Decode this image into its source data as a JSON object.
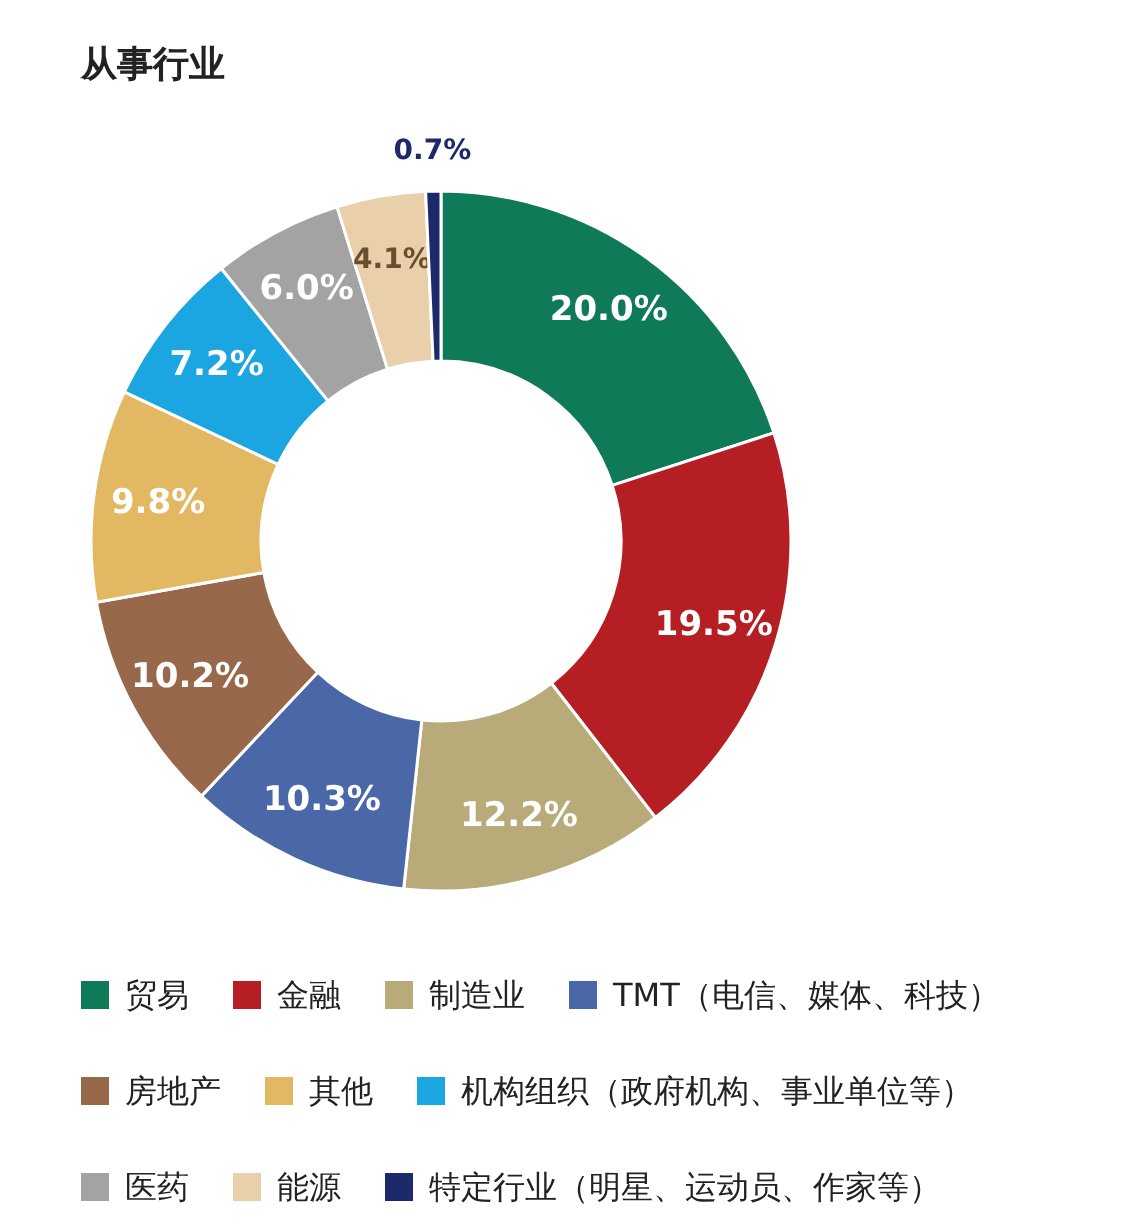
{
  "chart_data": {
    "type": "donut",
    "title": "从事行业",
    "categories": [
      "贸易",
      "金融",
      "制造业",
      "TMT（电信、媒体、科技）",
      "房地产",
      "其他",
      "机构组织（政府机构、事业单位等）",
      "医药",
      "能源",
      "特定行业（明星、运动员、作家等）"
    ],
    "values": [
      20.0,
      19.5,
      12.2,
      10.3,
      10.2,
      9.8,
      7.2,
      6.0,
      4.1,
      0.7
    ],
    "value_labels": [
      "20.0%",
      "19.5%",
      "12.2%",
      "10.3%",
      "10.2%",
      "9.8%",
      "7.2%",
      "6.0%",
      "4.1%",
      "0.7%"
    ],
    "colors": [
      "#0e7a58",
      "#b51f24",
      "#b9aa79",
      "#4a68a8",
      "#98684a",
      "#e2b862",
      "#1ba6e1",
      "#a3a3a3",
      "#e9cfaa",
      "#1c2a6b"
    ],
    "legend": "bottom"
  }
}
